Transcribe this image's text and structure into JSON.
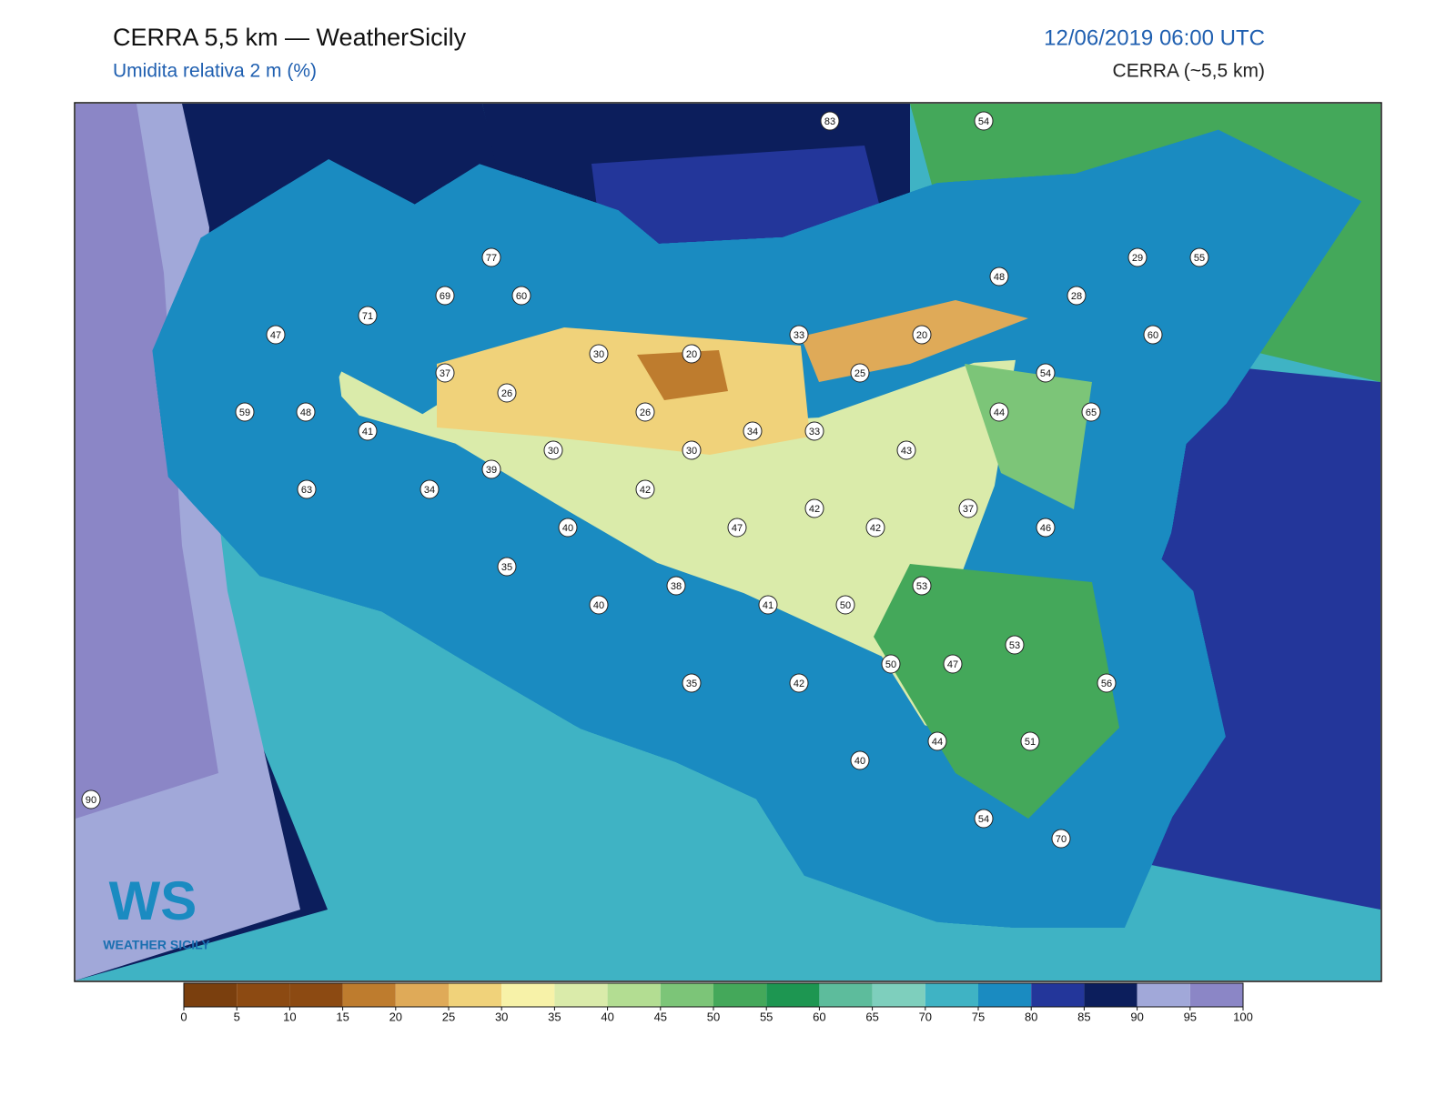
{
  "header": {
    "title": "CERRA 5,5 km — WeatherSicily",
    "subtitle": "Umidita relativa 2 m (%)",
    "datetime": "12/06/2019 06:00 UTC",
    "model": "CERRA (~5,5 km)"
  },
  "stations": [
    83,
    54,
    77,
    29,
    55,
    48,
    69,
    60,
    28,
    71,
    47,
    33,
    20,
    60,
    30,
    20,
    37,
    25,
    54,
    26,
    59,
    48,
    26,
    44,
    65,
    41,
    34,
    33,
    30,
    30,
    43,
    39,
    63,
    34,
    42,
    42,
    37,
    40,
    47,
    42,
    46,
    35,
    38,
    53,
    40,
    41,
    50,
    53,
    50,
    47,
    35,
    42,
    56,
    44,
    51,
    40,
    90,
    54,
    70
  ],
  "colorbar": {
    "ticks": [
      0,
      5,
      10,
      15,
      20,
      25,
      30,
      35,
      40,
      45,
      50,
      55,
      60,
      65,
      70,
      75,
      80,
      85,
      90,
      95,
      100
    ],
    "colors": [
      "#7a3f0e",
      "#8c4a12",
      "#8c4a12",
      "#be7c2e",
      "#dfaa58",
      "#f0d27a",
      "#f7f2a8",
      "#daebaa",
      "#b3dd92",
      "#7cc578",
      "#44a85a",
      "#1d9651",
      "#5dbc9c",
      "#7ecfbd",
      "#3fb3c4",
      "#1a8bc1",
      "#23369a",
      "#0c1e5c",
      "#a1a8d9",
      "#8b86c6"
    ]
  },
  "logo": {
    "initials": "WS",
    "name": "WEATHER SICILY"
  }
}
